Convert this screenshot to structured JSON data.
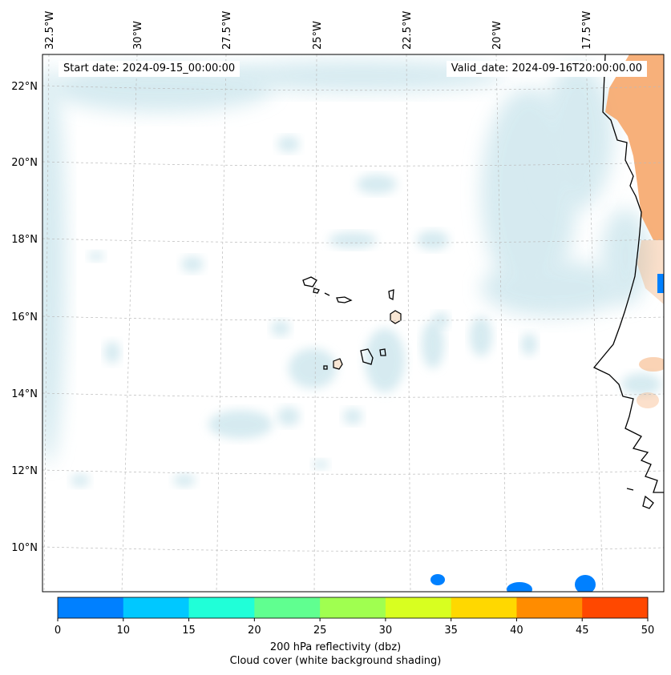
{
  "header": {
    "start_label": "Start date:",
    "start_value": "2024-09-15_00:00:00",
    "valid_label": "Valid_date:",
    "valid_value": "2024-09-16T20:00:00.00"
  },
  "map": {
    "lon_labels": [
      "32.5°W",
      "30°W",
      "27.5°W",
      "25°W",
      "22.5°W",
      "20°W",
      "17.5°W"
    ],
    "lat_labels": [
      "22°N",
      "20°N",
      "18°N",
      "16°N",
      "14°N",
      "12°N",
      "10°N"
    ],
    "colors": {
      "cloud": "#cfe7ee",
      "land_shading": "#f6a76b",
      "coast": "#000000",
      "grid": "#bbbbbb"
    }
  },
  "colorbar": {
    "ticks": [
      "0",
      "10",
      "15",
      "20",
      "25",
      "30",
      "35",
      "40",
      "45",
      "50"
    ],
    "colors": [
      "#0080ff",
      "#00c8ff",
      "#20ffd8",
      "#60ff90",
      "#a0ff50",
      "#d8ff20",
      "#ffd800",
      "#ff8c00",
      "#ff4800"
    ],
    "label": "200 hPa reflectivity (dbz)",
    "sublabel": "Cloud cover (white background shading)"
  }
}
